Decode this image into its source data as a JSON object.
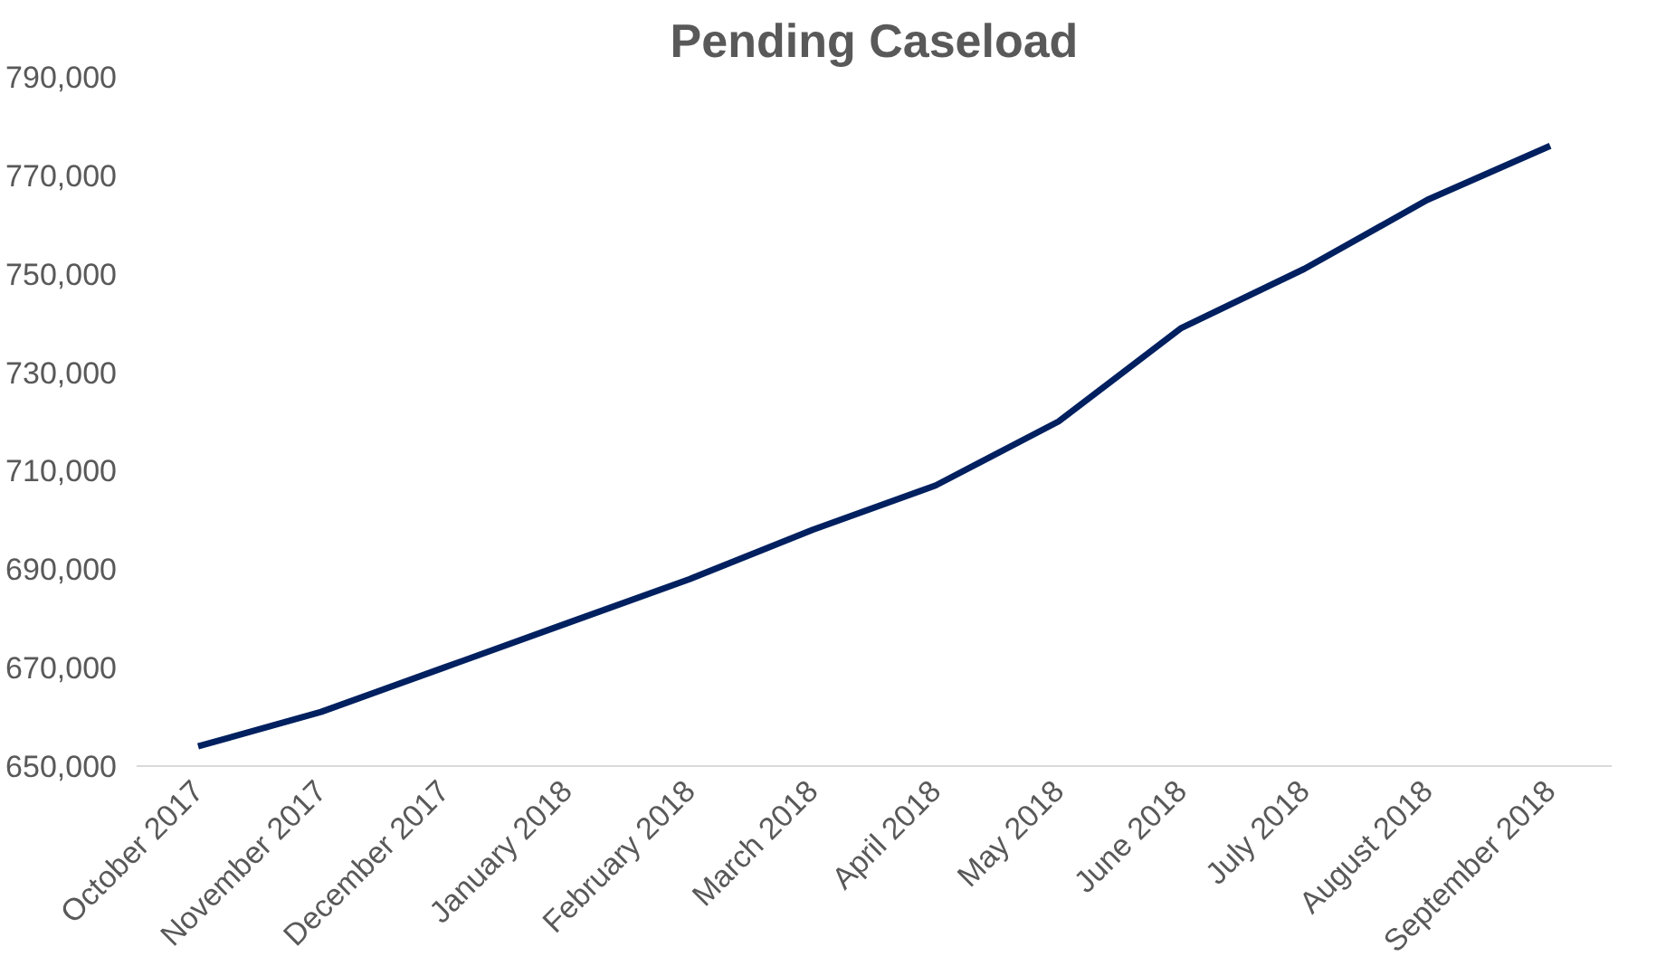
{
  "chart_data": {
    "type": "line",
    "title": "Pending Caseload",
    "categories": [
      "October 2017",
      "November 2017",
      "December 2017",
      "January 2018",
      "February 2018",
      "March 2018",
      "April 2018",
      "May 2018",
      "June 2018",
      "July 2018",
      "August 2018",
      "September 2018"
    ],
    "series": [
      {
        "color": "#002060",
        "values": [
          654000,
          661000,
          670000,
          679000,
          688000,
          698000,
          707000,
          720000,
          739000,
          751000,
          765000,
          776000
        ]
      }
    ],
    "ylim": [
      650000,
      790000
    ],
    "yticks": [
      {
        "value": 650000,
        "label": "650,000"
      },
      {
        "value": 670000,
        "label": "670,000"
      },
      {
        "value": 690000,
        "label": "690,000"
      },
      {
        "value": 710000,
        "label": "710,000"
      },
      {
        "value": 730000,
        "label": "730,000"
      },
      {
        "value": 750000,
        "label": "750,000"
      },
      {
        "value": 770000,
        "label": "770,000"
      },
      {
        "value": 790000,
        "label": "790,000"
      }
    ],
    "grid": false,
    "marker": "none",
    "line_style": "solid"
  }
}
